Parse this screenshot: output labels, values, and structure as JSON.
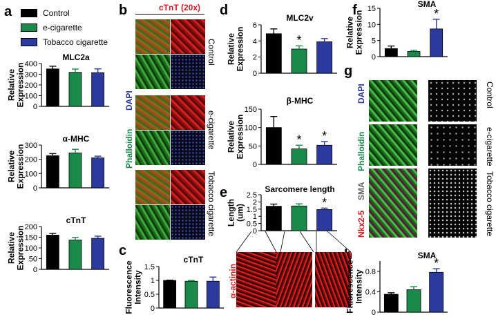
{
  "colors": {
    "control": "#000000",
    "ecig": "#1a8a4a",
    "tobacco": "#2b3a9c",
    "red": "#d7191c"
  },
  "legend": {
    "items": [
      {
        "label": "Control",
        "color": "#000000"
      },
      {
        "label": "e-cigarette",
        "color": "#1a8a4a"
      },
      {
        "label": "Tobacco cigarette",
        "color": "#2b3a9c"
      }
    ]
  },
  "panels": {
    "a": "a",
    "b": "b",
    "c": "c",
    "d": "d",
    "e": "e",
    "f": "f",
    "g": "g",
    "h": "h"
  },
  "panel_b": {
    "title": "cTnT (20x)",
    "rows": [
      "Control",
      "e-cigarette",
      "Tobacco cigarette"
    ],
    "stain_dapi": "DAPI",
    "stain_phalloidin": "Phalloidin"
  },
  "panel_e": {
    "stain": "α-actinin"
  },
  "panel_g": {
    "rows": [
      "Control",
      "e-cigarette",
      "Tobacco cigarette"
    ],
    "stain_dapi": "DAPI",
    "stain_phalloidin": "Phalloidin",
    "stain_sma": "SMA",
    "stain_nkx": "Nkx2-5"
  },
  "chart_data": [
    {
      "id": "a1",
      "type": "bar",
      "title": "MLC2a",
      "ylabel": "Relative Expression",
      "categories": [
        "Control",
        "e-cigarette",
        "Tobacco cigarette"
      ],
      "values": [
        350,
        318,
        315
      ],
      "errors": [
        25,
        30,
        35
      ],
      "ylim": [
        0,
        400
      ],
      "yticks": [
        0,
        100,
        200,
        300,
        400
      ],
      "significant": [
        false,
        false,
        false
      ]
    },
    {
      "id": "a2",
      "type": "bar",
      "title": "α-MHC",
      "ylabel": "Relative Expression",
      "categories": [
        "Control",
        "e-cigarette",
        "Tobacco cigarette"
      ],
      "values": [
        225,
        245,
        210
      ],
      "errors": [
        15,
        25,
        12
      ],
      "ylim": [
        0,
        300
      ],
      "yticks": [
        0,
        100,
        200,
        300
      ],
      "significant": [
        false,
        false,
        false
      ]
    },
    {
      "id": "a3",
      "type": "bar",
      "title": "cTnT",
      "ylabel": "Relative Expression",
      "categories": [
        "Control",
        "e-cigarette",
        "Tobacco cigarette"
      ],
      "values": [
        160,
        137,
        145
      ],
      "errors": [
        8,
        12,
        10
      ],
      "ylim": [
        0,
        200
      ],
      "yticks": [
        0,
        50,
        100,
        150,
        200
      ],
      "significant": [
        false,
        false,
        false
      ]
    },
    {
      "id": "c",
      "type": "bar",
      "title": "cTnT",
      "ylabel": "Fluorescence Intensity",
      "categories": [
        "Control",
        "e-cigarette",
        "Tobacco cigarette"
      ],
      "values": [
        1.0,
        0.97,
        0.97
      ],
      "errors": [
        0.01,
        0.03,
        0.15
      ],
      "ylim": [
        0,
        1.5
      ],
      "yticks": [
        0.0,
        0.5,
        1.0,
        1.5
      ],
      "significant": [
        false,
        false,
        false
      ]
    },
    {
      "id": "d1",
      "type": "bar",
      "title": "MLC2v",
      "ylabel": "Relative Expression",
      "categories": [
        "Control",
        "e-cigarette",
        "Tobacco cigarette"
      ],
      "values": [
        4.9,
        3.0,
        3.9
      ],
      "errors": [
        0.6,
        0.4,
        0.4
      ],
      "ylim": [
        0,
        6
      ],
      "yticks": [
        0,
        2,
        4,
        6
      ],
      "significant": [
        false,
        true,
        false
      ]
    },
    {
      "id": "d2",
      "type": "bar",
      "title": "β-MHC",
      "ylabel": "Relative Expression",
      "categories": [
        "Control",
        "e-cigarette",
        "Tobacco cigarette"
      ],
      "values": [
        100,
        42,
        52
      ],
      "errors": [
        30,
        10,
        10
      ],
      "ylim": [
        0,
        150
      ],
      "yticks": [
        0,
        50,
        100,
        150
      ],
      "significant": [
        false,
        true,
        true
      ]
    },
    {
      "id": "e",
      "type": "bar",
      "title": "Sarcomere length",
      "ylabel": "Length (um)",
      "categories": [
        "Control",
        "e-cigarette",
        "Tobacco cigarette"
      ],
      "values": [
        1.7,
        1.72,
        1.47
      ],
      "errors": [
        0.15,
        0.15,
        0.1
      ],
      "ylim": [
        0,
        2.5
      ],
      "yticks": [
        0.0,
        0.5,
        1.0,
        1.5,
        2.0,
        2.5
      ],
      "significant": [
        false,
        false,
        true
      ]
    },
    {
      "id": "f",
      "type": "bar",
      "title": "SMA",
      "ylabel": "Relative Expression",
      "categories": [
        "Control",
        "e-cigarette",
        "Tobacco cigarette"
      ],
      "values": [
        2.5,
        1.6,
        8.6
      ],
      "errors": [
        0.8,
        0.4,
        3.0
      ],
      "ylim": [
        0,
        15
      ],
      "yticks": [
        0,
        5,
        10,
        15
      ],
      "significant": [
        false,
        false,
        true
      ]
    },
    {
      "id": "h",
      "type": "bar",
      "title": "SMA",
      "ylabel": "Fluorescence Intensity",
      "categories": [
        "Control",
        "e-cigarette",
        "Tobacco cigarette"
      ],
      "values": [
        0.35,
        0.44,
        0.78
      ],
      "errors": [
        0.03,
        0.06,
        0.07
      ],
      "ylim": [
        0,
        1.0
      ],
      "yticks": [
        0.0,
        0.4,
        0.8
      ],
      "significant": [
        false,
        false,
        true
      ]
    }
  ]
}
